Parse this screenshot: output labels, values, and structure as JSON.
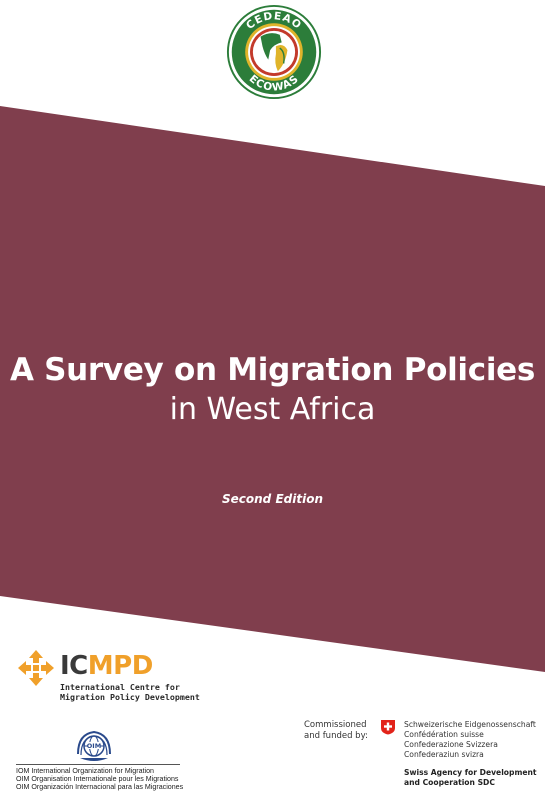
{
  "colors": {
    "band": "#803e4d",
    "ecowas_green": "#2c7d3a",
    "ecowas_gold": "#e0b42a",
    "ecowas_red": "#c33a2b",
    "icmpd_orange": "#f0a02a",
    "iom_blue": "#2a4a8c",
    "swiss_red": "#e2231a"
  },
  "header": {
    "logo_icon": "ecowas-emblem",
    "logo_text_top": "CEDEAO",
    "logo_text_bottom": "ECOWAS"
  },
  "cover": {
    "title_main": "A Survey on Migration Policies",
    "title_sub": "in West Africa",
    "edition": "Second Edition"
  },
  "footer": {
    "icmpd": {
      "icon": "icmpd-arrows-icon",
      "wordmark_ic": "IC",
      "wordmark_mpd": "MPD",
      "line_1": "International Centre for",
      "line_2": "Migration Policy Development"
    },
    "iom": {
      "icon": "iom-globe-emblem",
      "line_en": "IOM International Organization for Migration",
      "line_fr": "OIM Organisation Internationale pour les Migrations",
      "line_es": "OIM Organización Internacional para las Migraciones"
    },
    "sdc": {
      "commissioned_1": "Commissioned",
      "commissioned_2": "and funded by:",
      "flag_icon": "swiss-cross-icon",
      "line_de": "Schweizerische Eidgenossenschaft",
      "line_fr": "Confédération suisse",
      "line_it": "Confederazione Svizzera",
      "line_rm": "Confederaziun svizra",
      "agency_1": "Swiss Agency for Development",
      "agency_2": "and Cooperation SDC"
    }
  }
}
